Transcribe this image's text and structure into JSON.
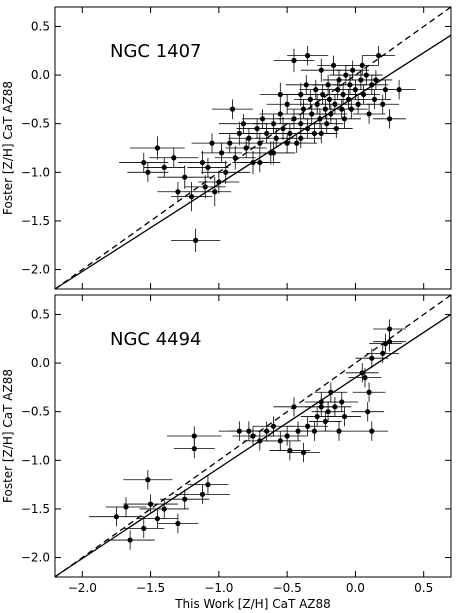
{
  "chart_data": [
    {
      "type": "scatter",
      "title": "NGC 1407",
      "xlabel": "",
      "ylabel": "Foster [Z/H] CaT AZ88",
      "xlim": [
        -2.2,
        0.7
      ],
      "ylim": [
        -2.2,
        0.7
      ],
      "xticks": [
        -2.0,
        -1.5,
        -1.0,
        -0.5,
        0.0,
        0.5
      ],
      "yticks": [
        0.5,
        0.0,
        -0.5,
        -1.0,
        -1.5,
        -2.0
      ],
      "ytick_labels": [
        "0.5",
        "0.0",
        "−0.5",
        "−1.0",
        "−1.5",
        "−2.0"
      ],
      "show_x_tick_labels": false,
      "reference_lines": [
        {
          "style": "dashed",
          "slope": 1.0,
          "intercept": 0.0
        },
        {
          "style": "solid",
          "slope": 0.9,
          "intercept": -0.22
        }
      ],
      "points": [
        [
          -1.55,
          -0.9,
          0.18,
          0.1
        ],
        [
          -1.52,
          -1.0,
          0.15,
          0.1
        ],
        [
          -1.45,
          -0.75,
          0.2,
          0.12
        ],
        [
          -1.4,
          -0.95,
          0.15,
          0.1
        ],
        [
          -1.33,
          -0.85,
          0.18,
          0.1
        ],
        [
          -1.3,
          -1.2,
          0.15,
          0.1
        ],
        [
          -1.25,
          -1.05,
          0.2,
          0.12
        ],
        [
          -1.2,
          -1.25,
          0.15,
          0.15
        ],
        [
          -1.17,
          -1.7,
          0.18,
          0.12
        ],
        [
          -1.12,
          -0.9,
          0.18,
          0.12
        ],
        [
          -1.1,
          -1.15,
          0.15,
          0.12
        ],
        [
          -1.08,
          -0.95,
          0.15,
          0.1
        ],
        [
          -1.05,
          -0.7,
          0.15,
          0.1
        ],
        [
          -1.03,
          -1.2,
          0.12,
          0.15
        ],
        [
          -1.0,
          -1.1,
          0.15,
          0.12
        ],
        [
          -0.98,
          -0.8,
          0.15,
          0.1
        ],
        [
          -0.95,
          -1.0,
          0.18,
          0.12
        ],
        [
          -0.92,
          -0.7,
          0.15,
          0.1
        ],
        [
          -0.9,
          -0.35,
          0.15,
          0.1
        ],
        [
          -0.88,
          -0.85,
          0.15,
          0.12
        ],
        [
          -0.85,
          -0.6,
          0.15,
          0.12
        ],
        [
          -0.82,
          -0.5,
          0.18,
          0.1
        ],
        [
          -0.8,
          -0.75,
          0.15,
          0.1
        ],
        [
          -0.78,
          -0.65,
          0.15,
          0.1
        ],
        [
          -0.75,
          -0.9,
          0.15,
          0.12
        ],
        [
          -0.72,
          -0.55,
          0.15,
          0.1
        ],
        [
          -0.7,
          -0.7,
          0.15,
          0.1
        ],
        [
          -0.68,
          -0.45,
          0.15,
          0.1
        ],
        [
          -0.65,
          -0.6,
          0.15,
          0.1
        ],
        [
          -0.62,
          -0.8,
          0.18,
          0.12
        ],
        [
          -0.6,
          -0.5,
          0.15,
          0.1
        ],
        [
          -0.58,
          -0.65,
          0.15,
          0.1
        ],
        [
          -0.55,
          -0.4,
          0.15,
          0.1
        ],
        [
          -0.53,
          -0.55,
          0.15,
          0.12
        ],
        [
          -0.5,
          -0.3,
          0.15,
          0.1
        ],
        [
          -0.48,
          -0.6,
          0.15,
          0.1
        ],
        [
          -0.45,
          -0.45,
          0.12,
          0.1
        ],
        [
          -0.45,
          0.15,
          0.15,
          0.12
        ],
        [
          -0.43,
          -0.7,
          0.15,
          0.1
        ],
        [
          -0.4,
          -0.2,
          0.15,
          0.12
        ],
        [
          -0.4,
          -0.5,
          0.12,
          0.1
        ],
        [
          -0.38,
          -0.35,
          0.12,
          0.1
        ],
        [
          -0.36,
          -0.1,
          0.15,
          0.1
        ],
        [
          -0.35,
          -0.55,
          0.12,
          0.1
        ],
        [
          -0.33,
          -0.25,
          0.12,
          0.1
        ],
        [
          -0.32,
          -0.4,
          0.12,
          0.1
        ],
        [
          -0.3,
          -0.6,
          0.15,
          0.1
        ],
        [
          -0.29,
          -0.15,
          0.12,
          0.1
        ],
        [
          -0.28,
          -0.3,
          0.12,
          0.1
        ],
        [
          -0.26,
          -0.45,
          0.12,
          0.1
        ],
        [
          -0.25,
          0.05,
          0.15,
          0.12
        ],
        [
          -0.24,
          -0.2,
          0.12,
          0.1
        ],
        [
          -0.22,
          -0.35,
          0.12,
          0.1
        ],
        [
          -0.21,
          -0.5,
          0.12,
          0.1
        ],
        [
          -0.2,
          -0.1,
          0.12,
          0.1
        ],
        [
          -0.19,
          -0.25,
          0.12,
          0.1
        ],
        [
          -0.18,
          -0.4,
          0.12,
          0.1
        ],
        [
          -0.16,
          0.1,
          0.12,
          0.1
        ],
        [
          -0.15,
          -0.3,
          0.12,
          0.1
        ],
        [
          -0.14,
          -0.55,
          0.12,
          0.1
        ],
        [
          -0.13,
          -0.15,
          0.12,
          0.1
        ],
        [
          -0.12,
          -0.05,
          0.12,
          0.1
        ],
        [
          -0.1,
          -0.35,
          0.12,
          0.1
        ],
        [
          -0.09,
          -0.2,
          0.12,
          0.1
        ],
        [
          -0.08,
          -0.45,
          0.12,
          0.1
        ],
        [
          -0.07,
          0.0,
          0.12,
          0.1
        ],
        [
          -0.05,
          -0.25,
          0.12,
          0.1
        ],
        [
          -0.04,
          -0.1,
          0.12,
          0.1
        ],
        [
          -0.03,
          -0.35,
          0.12,
          0.1
        ],
        [
          -0.02,
          0.05,
          0.12,
          0.1
        ],
        [
          0.0,
          -0.15,
          0.12,
          0.1
        ],
        [
          0.02,
          -0.3,
          0.12,
          0.1
        ],
        [
          0.04,
          -0.05,
          0.12,
          0.1
        ],
        [
          0.06,
          -0.2,
          0.12,
          0.1
        ],
        [
          0.08,
          0.0,
          0.12,
          0.1
        ],
        [
          0.1,
          -0.4,
          0.12,
          0.1
        ],
        [
          0.12,
          -0.1,
          0.12,
          0.1
        ],
        [
          0.14,
          -0.25,
          0.12,
          0.1
        ],
        [
          0.15,
          -0.05,
          0.12,
          0.1
        ],
        [
          0.17,
          0.2,
          0.12,
          0.1
        ],
        [
          0.2,
          -0.3,
          0.12,
          0.1
        ],
        [
          0.22,
          -0.15,
          0.12,
          0.1
        ],
        [
          0.25,
          -0.45,
          0.12,
          0.1
        ],
        [
          0.32,
          -0.15,
          0.12,
          0.1
        ],
        [
          -0.6,
          -0.8,
          0.15,
          0.12
        ],
        [
          -0.7,
          -0.9,
          0.15,
          0.1
        ],
        [
          -0.5,
          -0.7,
          0.15,
          0.1
        ],
        [
          -0.4,
          -0.65,
          0.15,
          0.1
        ],
        [
          -0.55,
          -0.2,
          0.15,
          0.12
        ],
        [
          -0.35,
          0.2,
          0.15,
          0.1
        ],
        [
          0.05,
          0.1,
          0.12,
          0.1
        ],
        [
          -0.25,
          -0.6,
          0.12,
          0.1
        ]
      ]
    },
    {
      "type": "scatter",
      "title": "NGC 4494",
      "xlabel": "This Work [Z/H] CaT AZ88",
      "ylabel": "Foster [Z/H] CaT AZ88",
      "xlim": [
        -2.2,
        0.7
      ],
      "ylim": [
        -2.2,
        0.7
      ],
      "xticks": [
        -2.0,
        -1.5,
        -1.0,
        -0.5,
        0.0,
        0.5
      ],
      "xtick_labels": [
        "−2.0",
        "−1.5",
        "−1.0",
        "−0.5",
        "0.0",
        "0.5"
      ],
      "yticks": [
        0.5,
        0.0,
        -0.5,
        -1.0,
        -1.5,
        -2.0
      ],
      "ytick_labels": [
        "0.5",
        "0.0",
        "−0.5",
        "−1.0",
        "−1.5",
        "−2.0"
      ],
      "show_x_tick_labels": true,
      "reference_lines": [
        {
          "style": "dashed",
          "slope": 1.0,
          "intercept": 0.0
        },
        {
          "style": "solid",
          "slope": 0.93,
          "intercept": -0.15
        }
      ],
      "points": [
        [
          -1.75,
          -1.58,
          0.2,
          0.1
        ],
        [
          -1.68,
          -1.48,
          0.15,
          0.1
        ],
        [
          -1.65,
          -1.82,
          0.18,
          0.1
        ],
        [
          -1.55,
          -1.7,
          0.15,
          0.1
        ],
        [
          -1.52,
          -1.2,
          0.18,
          0.1
        ],
        [
          -1.5,
          -1.45,
          0.2,
          0.1
        ],
        [
          -1.45,
          -1.6,
          0.15,
          0.1
        ],
        [
          -1.4,
          -1.5,
          0.18,
          0.1
        ],
        [
          -1.3,
          -1.65,
          0.15,
          0.1
        ],
        [
          -1.25,
          -1.4,
          0.18,
          0.1
        ],
        [
          -1.18,
          -0.75,
          0.2,
          0.1
        ],
        [
          -1.18,
          -0.88,
          0.15,
          0.1
        ],
        [
          -1.12,
          -1.35,
          0.2,
          0.1
        ],
        [
          -1.08,
          -1.25,
          0.15,
          0.1
        ],
        [
          -0.85,
          -0.7,
          0.15,
          0.1
        ],
        [
          -0.78,
          -0.7,
          0.15,
          0.1
        ],
        [
          -0.75,
          -0.75,
          0.15,
          0.1
        ],
        [
          -0.7,
          -0.8,
          0.12,
          0.1
        ],
        [
          -0.65,
          -0.7,
          0.15,
          0.1
        ],
        [
          -0.6,
          -0.65,
          0.15,
          0.1
        ],
        [
          -0.55,
          -0.8,
          0.15,
          0.1
        ],
        [
          -0.5,
          -0.75,
          0.15,
          0.1
        ],
        [
          -0.48,
          -0.9,
          0.15,
          0.1
        ],
        [
          -0.45,
          -0.45,
          0.15,
          0.1
        ],
        [
          -0.42,
          -0.7,
          0.12,
          0.1
        ],
        [
          -0.38,
          -0.92,
          0.12,
          0.1
        ],
        [
          -0.35,
          -0.65,
          0.15,
          0.1
        ],
        [
          -0.3,
          -0.7,
          0.12,
          0.1
        ],
        [
          -0.28,
          -0.55,
          0.12,
          0.1
        ],
        [
          -0.25,
          -0.4,
          0.12,
          0.1
        ],
        [
          -0.22,
          -0.6,
          0.12,
          0.1
        ],
        [
          -0.2,
          -0.5,
          0.12,
          0.1
        ],
        [
          -0.18,
          -0.3,
          0.12,
          0.1
        ],
        [
          -0.15,
          -0.45,
          0.12,
          0.1
        ],
        [
          -0.12,
          -0.7,
          0.12,
          0.1
        ],
        [
          -0.1,
          -0.4,
          0.12,
          0.1
        ],
        [
          -0.08,
          -0.55,
          0.12,
          0.1
        ],
        [
          0.05,
          -0.1,
          0.12,
          0.1
        ],
        [
          0.07,
          -0.15,
          0.12,
          0.1
        ],
        [
          0.09,
          -0.5,
          0.12,
          0.1
        ],
        [
          0.1,
          -0.3,
          0.12,
          0.1
        ],
        [
          0.12,
          -0.7,
          0.12,
          0.1
        ],
        [
          0.12,
          0.05,
          0.12,
          0.1
        ],
        [
          0.2,
          0.1,
          0.12,
          0.1
        ],
        [
          0.22,
          0.2,
          0.12,
          0.1
        ],
        [
          0.25,
          0.35,
          0.12,
          0.1
        ],
        [
          0.25,
          0.22,
          0.12,
          0.1
        ],
        [
          -0.25,
          -0.45,
          0.12,
          0.1
        ]
      ]
    }
  ]
}
